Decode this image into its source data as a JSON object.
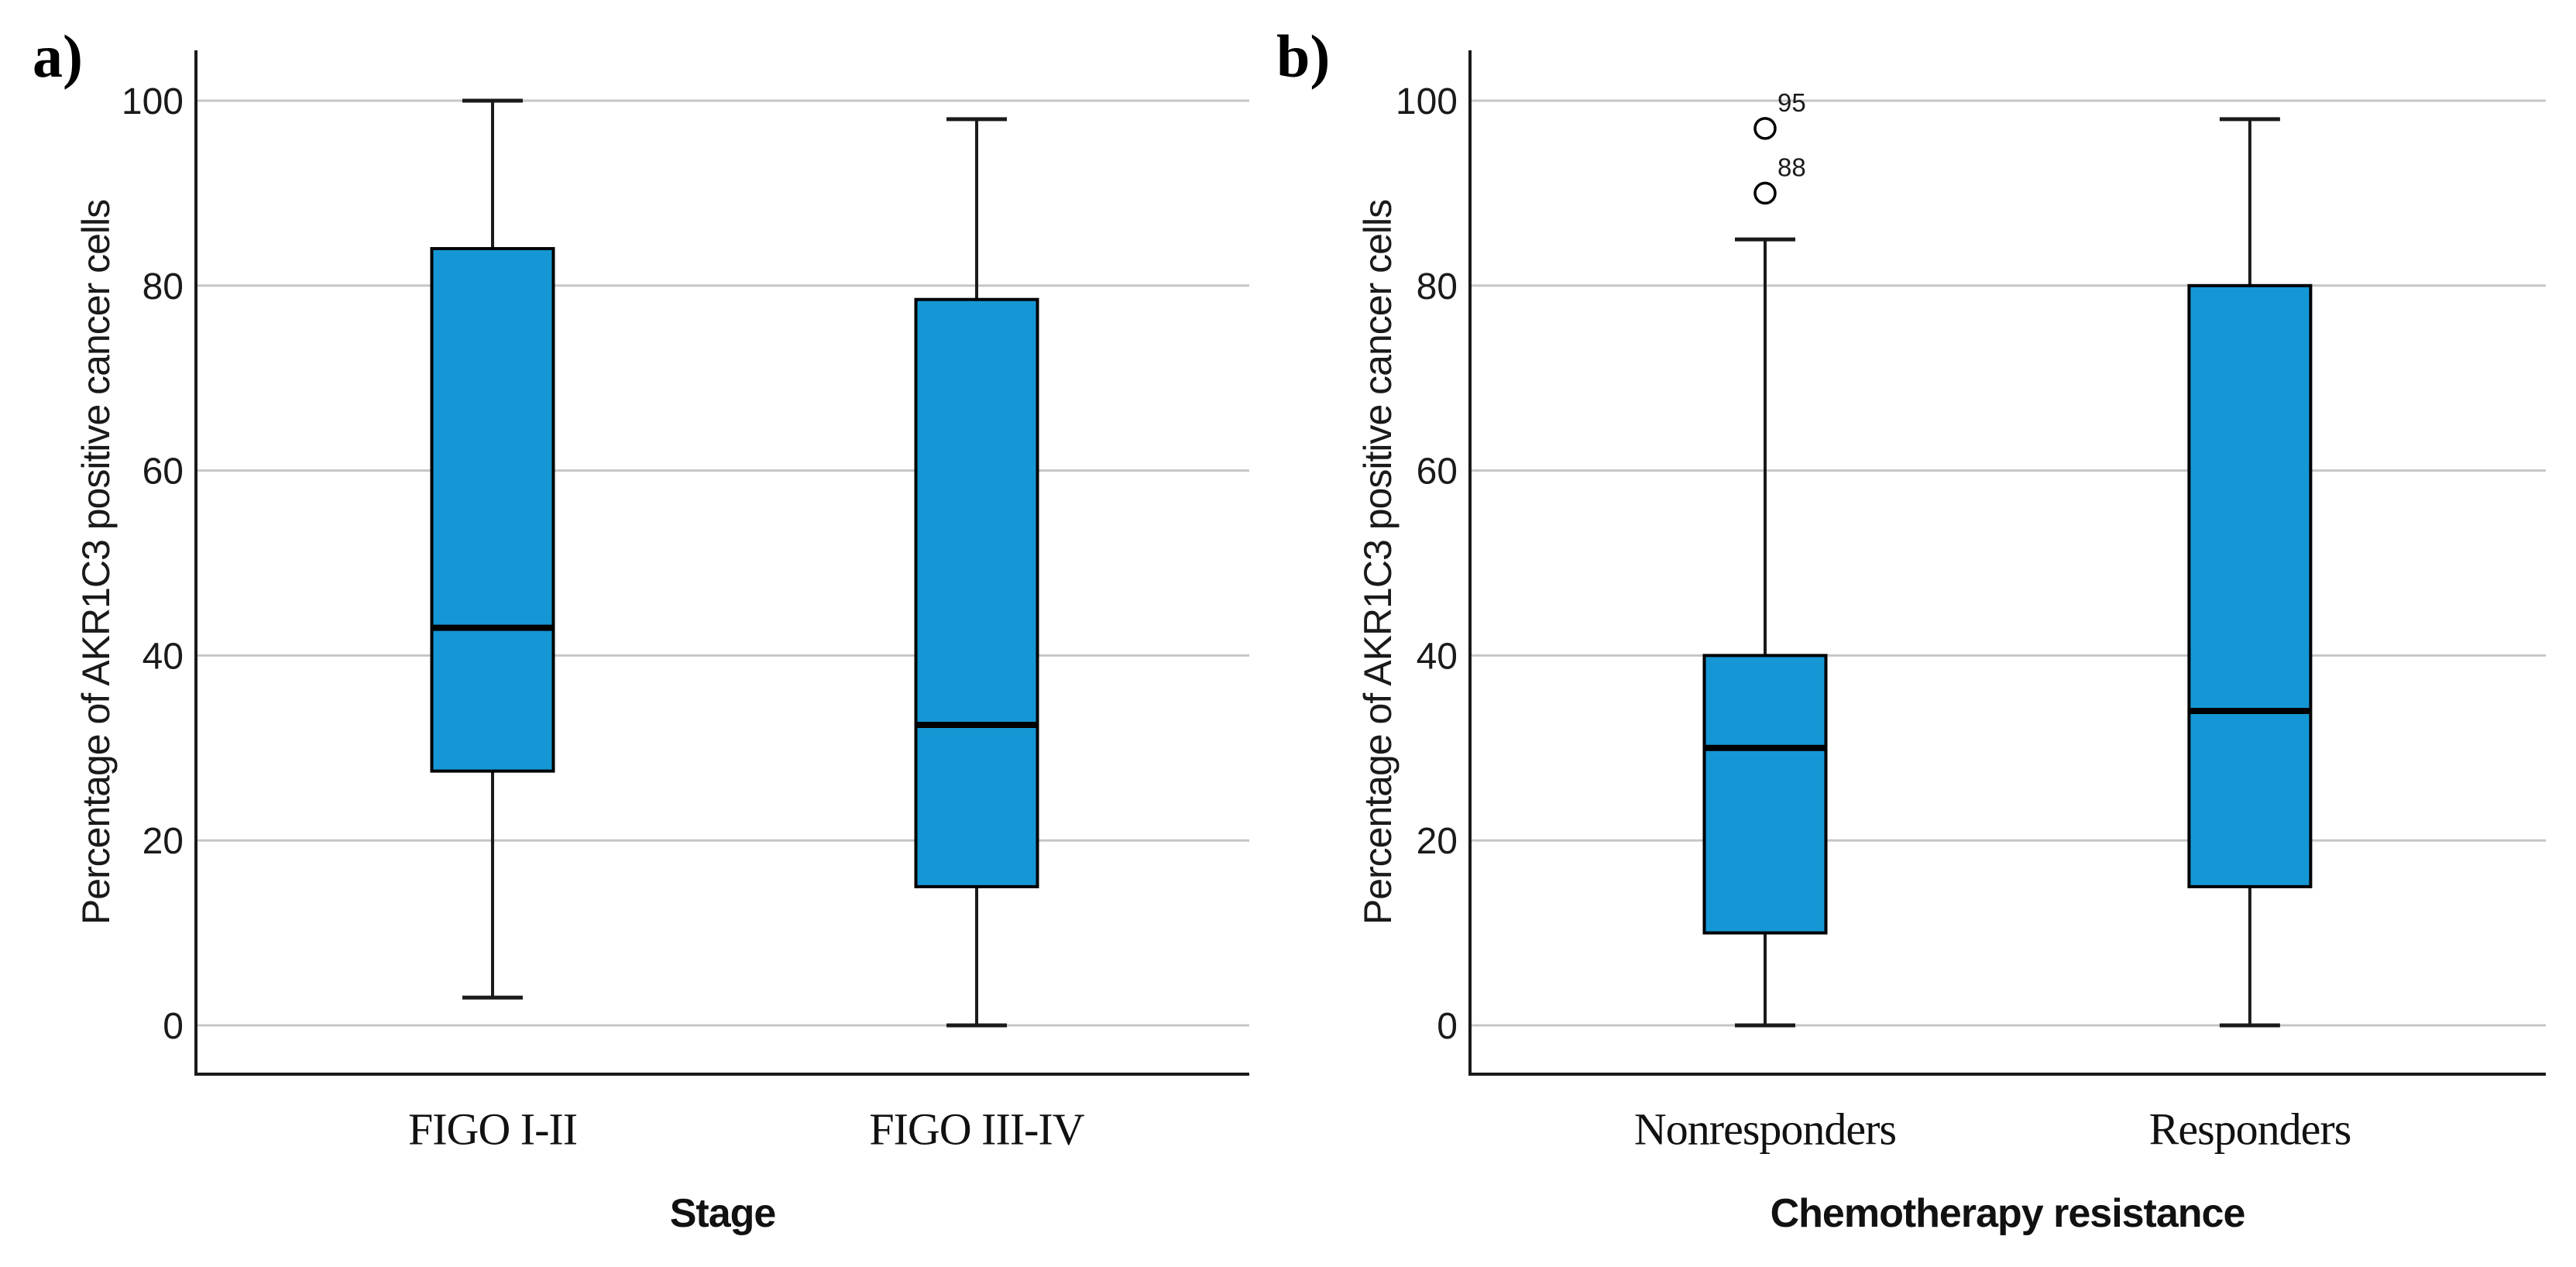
{
  "figure": {
    "background": "#ffffff",
    "panel_a_label": "a)",
    "panel_b_label": "b)"
  },
  "colors": {
    "box_fill": "#1697D5",
    "box_border": "#000000",
    "median_line": "#000000",
    "whisker": "#1a1a1a",
    "gridline": "#C6C6C6",
    "axis_line": "#1a1a1a",
    "tick_text": "#1a1a1a",
    "outlier_stroke": "#000000",
    "outlier_fill": "#ffffff"
  },
  "chart_data": [
    {
      "type": "box",
      "panel_label": "a)",
      "title": "",
      "xlabel": "Stage",
      "ylabel": "Percentage of AKR1C3 positive cancer cells",
      "categories": [
        "FIGO I-II",
        "FIGO III-IV"
      ],
      "ylim": [
        0,
        100
      ],
      "yticks": [
        0,
        20,
        40,
        60,
        80,
        100
      ],
      "grid": true,
      "legend": "none",
      "boxes": [
        {
          "category": "FIGO I-II",
          "whisker_low": 3,
          "q1": 27.5,
          "median": 43,
          "q3": 84,
          "whisker_high": 100,
          "outliers": []
        },
        {
          "category": "FIGO III-IV",
          "whisker_low": 0,
          "q1": 15,
          "median": 32.5,
          "q3": 78.5,
          "whisker_high": 98,
          "outliers": []
        }
      ]
    },
    {
      "type": "box",
      "panel_label": "b)",
      "title": "",
      "xlabel": "Chemotherapy resistance",
      "ylabel": "Percentage of AKR1C3 positive cancer cells",
      "categories": [
        "Nonresponders",
        "Responders"
      ],
      "ylim": [
        0,
        100
      ],
      "yticks": [
        0,
        20,
        40,
        60,
        80,
        100
      ],
      "grid": true,
      "legend": "none",
      "boxes": [
        {
          "category": "Nonresponders",
          "whisker_low": 0,
          "q1": 10,
          "median": 30,
          "q3": 40,
          "whisker_high": 85,
          "outliers": [
            {
              "value": 97,
              "label": "95"
            },
            {
              "value": 90,
              "label": "88"
            }
          ]
        },
        {
          "category": "Responders",
          "whisker_low": 0,
          "q1": 15,
          "median": 34,
          "q3": 80,
          "whisker_high": 98,
          "outliers": []
        }
      ]
    }
  ]
}
